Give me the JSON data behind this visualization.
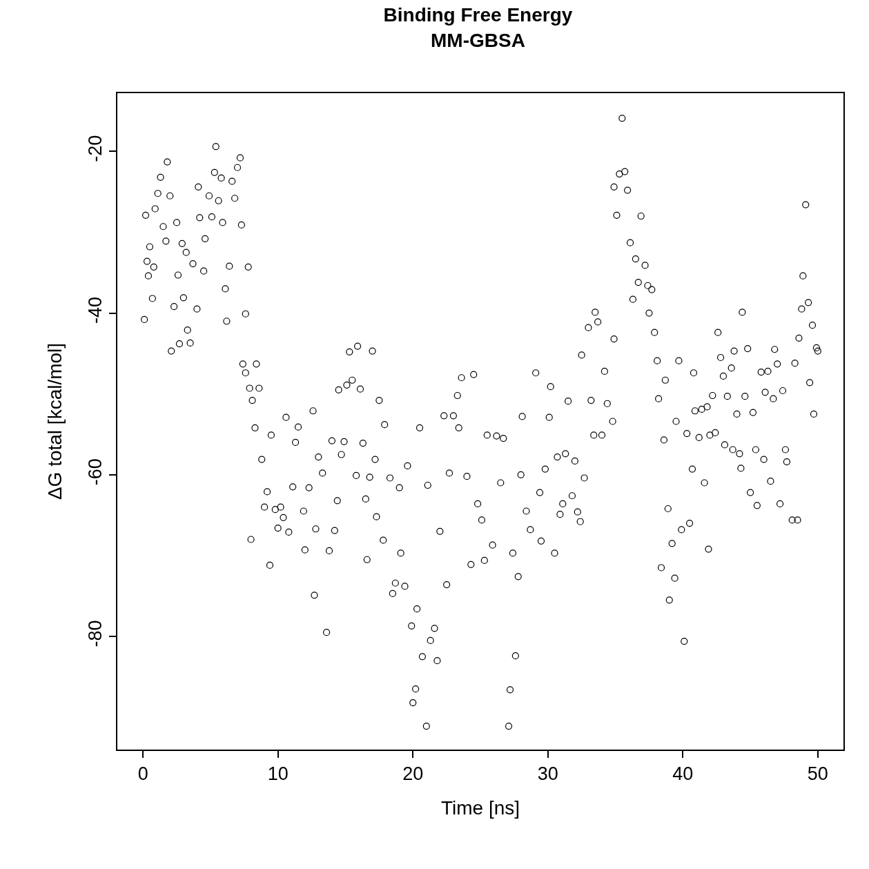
{
  "chart_data": {
    "type": "scatter",
    "title": "Binding Free Energy\nMM-GBSA",
    "xlabel": "Time [ns]",
    "ylabel": "ΔG total [kcal/mol]",
    "xlim": [
      -1.9,
      51.9
    ],
    "ylim": [
      -94.0,
      -12.8
    ],
    "xticks": [
      0,
      10,
      20,
      30,
      40,
      50
    ],
    "yticks": [
      -20,
      -40,
      -60,
      -80
    ],
    "marker": "circle",
    "series": [
      {
        "color": "#000000",
        "x": [
          0.1,
          0.2,
          0.3,
          0.4,
          0.5,
          0.7,
          0.8,
          0.9,
          1.1,
          1.3,
          1.5,
          1.7,
          1.8,
          2.0,
          2.1,
          2.3,
          2.5,
          2.6,
          2.7,
          2.9,
          3.0,
          3.2,
          3.3,
          3.5,
          3.7,
          4.0,
          4.1,
          4.2,
          4.5,
          4.6,
          4.9,
          5.1,
          5.3,
          5.4,
          5.6,
          5.8,
          5.9,
          6.1,
          6.2,
          6.4,
          6.6,
          6.8,
          7.0,
          7.2,
          7.3,
          7.4,
          7.6,
          7.6,
          7.8,
          7.9,
          8.0,
          8.1,
          8.3,
          8.4,
          8.6,
          8.8,
          9.0,
          9.2,
          9.4,
          9.5,
          9.8,
          10.0,
          10.2,
          10.4,
          10.6,
          10.8,
          11.1,
          11.3,
          11.5,
          11.9,
          12.0,
          12.3,
          12.6,
          12.7,
          12.8,
          13.0,
          13.3,
          13.6,
          13.8,
          14.0,
          14.2,
          14.4,
          14.5,
          14.7,
          14.9,
          15.1,
          15.3,
          15.5,
          15.8,
          15.9,
          16.1,
          16.3,
          16.5,
          16.6,
          16.8,
          17.0,
          17.2,
          17.3,
          17.5,
          17.8,
          17.9,
          18.3,
          18.5,
          18.7,
          19.0,
          19.1,
          19.4,
          19.6,
          19.9,
          20.0,
          20.2,
          20.3,
          20.5,
          20.7,
          21.0,
          21.1,
          21.3,
          21.6,
          21.8,
          22.0,
          22.3,
          22.5,
          22.7,
          23.0,
          23.3,
          23.4,
          23.6,
          24.0,
          24.3,
          24.5,
          24.8,
          25.1,
          25.3,
          25.5,
          25.9,
          26.2,
          26.5,
          26.7,
          27.1,
          27.2,
          27.4,
          27.6,
          27.8,
          28.0,
          28.1,
          28.4,
          28.7,
          29.1,
          29.4,
          29.5,
          29.8,
          30.1,
          30.2,
          30.5,
          30.7,
          30.9,
          31.1,
          31.3,
          31.5,
          31.8,
          32.0,
          32.2,
          32.4,
          32.5,
          32.7,
          33.0,
          33.2,
          33.4,
          33.5,
          33.7,
          34.0,
          34.2,
          34.4,
          34.8,
          34.9,
          34.9,
          35.1,
          35.3,
          35.5,
          35.7,
          35.9,
          36.1,
          36.3,
          36.5,
          36.7,
          36.9,
          37.2,
          37.4,
          37.5,
          37.7,
          37.9,
          38.1,
          38.2,
          38.4,
          38.6,
          38.7,
          38.9,
          39.0,
          39.2,
          39.4,
          39.5,
          39.7,
          39.9,
          40.1,
          40.3,
          40.5,
          40.7,
          40.8,
          40.9,
          41.2,
          41.4,
          41.6,
          41.8,
          41.9,
          42.0,
          42.2,
          42.4,
          42.6,
          42.8,
          43.0,
          43.1,
          43.3,
          43.6,
          43.7,
          43.8,
          44.0,
          44.2,
          44.3,
          44.4,
          44.6,
          44.8,
          45.0,
          45.2,
          45.4,
          45.5,
          45.8,
          46.0,
          46.1,
          46.3,
          46.5,
          46.7,
          46.8,
          47.0,
          47.2,
          47.4,
          47.6,
          47.7,
          48.1,
          48.3,
          48.5,
          48.6,
          48.8,
          48.9,
          49.1,
          49.3,
          49.4,
          49.6,
          49.7,
          49.9,
          50.0
        ],
        "values": [
          -40.8,
          -27.9,
          -33.6,
          -35.4,
          -31.8,
          -38.2,
          -34.3,
          -27.1,
          -25.2,
          -23.2,
          -29.3,
          -31.1,
          -21.3,
          -25.5,
          -44.7,
          -39.2,
          -28.8,
          -35.3,
          -43.8,
          -31.4,
          -38.1,
          -32.5,
          -42.1,
          -43.7,
          -33.9,
          -39.5,
          -24.4,
          -28.2,
          -34.8,
          -30.8,
          -25.5,
          -28.1,
          -22.6,
          -19.4,
          -26.1,
          -23.3,
          -28.8,
          -37.0,
          -41.0,
          -34.2,
          -23.7,
          -25.8,
          -22.0,
          -20.8,
          -29.1,
          -46.3,
          -47.4,
          -40.1,
          -34.3,
          -49.3,
          -68.0,
          -50.8,
          -54.2,
          -46.3,
          -49.3,
          -58.1,
          -64.0,
          -62.1,
          -71.2,
          -55.1,
          -64.3,
          -66.6,
          -64.0,
          -65.3,
          -52.9,
          -67.1,
          -61.5,
          -56.0,
          -54.1,
          -64.5,
          -69.3,
          -61.6,
          -52.1,
          -74.9,
          -66.7,
          -57.8,
          -59.8,
          -79.5,
          -69.4,
          -55.8,
          -66.9,
          -63.2,
          -49.5,
          -57.5,
          -55.9,
          -48.9,
          -44.8,
          -48.3,
          -60.1,
          -44.1,
          -49.4,
          -56.1,
          -63.0,
          -70.5,
          -60.3,
          -44.7,
          -58.1,
          -65.2,
          -50.8,
          -68.1,
          -53.8,
          -60.4,
          -74.7,
          -73.4,
          -61.6,
          -69.7,
          -73.8,
          -58.9,
          -78.7,
          -88.2,
          -86.5,
          -76.6,
          -54.2,
          -82.5,
          -91.1,
          -61.3,
          -80.5,
          -79.0,
          -83.0,
          -67.0,
          -52.7,
          -73.6,
          -59.8,
          -52.7,
          -50.2,
          -54.2,
          -48.0,
          -60.2,
          -71.1,
          -47.6,
          -63.6,
          -65.6,
          -70.6,
          -55.1,
          -68.7,
          -55.2,
          -61.0,
          -55.5,
          -91.1,
          -86.6,
          -69.7,
          -82.4,
          -72.6,
          -60.0,
          -52.8,
          -64.5,
          -66.8,
          -47.4,
          -62.2,
          -68.2,
          -59.3,
          -52.9,
          -49.1,
          -69.7,
          -57.8,
          -64.9,
          -63.6,
          -57.4,
          -50.9,
          -62.6,
          -58.3,
          -64.6,
          -65.8,
          -45.2,
          -60.4,
          -41.8,
          -50.8,
          -55.1,
          -39.9,
          -41.1,
          -55.1,
          -47.2,
          -51.2,
          -53.4,
          -43.2,
          -24.4,
          -27.9,
          -22.8,
          -15.9,
          -22.5,
          -24.8,
          -31.3,
          -38.3,
          -33.3,
          -36.2,
          -28.0,
          -34.1,
          -36.6,
          -40.0,
          -37.1,
          -42.4,
          -45.9,
          -50.6,
          -71.5,
          -55.7,
          -48.3,
          -64.2,
          -75.5,
          -68.5,
          -72.8,
          -53.4,
          -45.9,
          -66.8,
          -80.6,
          -54.9,
          -66.0,
          -59.3,
          -47.4,
          -52.1,
          -55.4,
          -51.9,
          -61.0,
          -51.6,
          -69.2,
          -55.1,
          -50.2,
          -54.8,
          -42.4,
          -45.5,
          -47.8,
          -56.3,
          -50.3,
          -46.8,
          -56.9,
          -44.7,
          -52.5,
          -57.4,
          -59.2,
          -39.9,
          -50.3,
          -44.4,
          -62.2,
          -52.3,
          -56.9,
          -63.8,
          -47.3,
          -58.1,
          -49.8,
          -47.2,
          -60.8,
          -50.6,
          -44.5,
          -46.3,
          -63.6,
          -49.6,
          -56.9,
          -58.4,
          -65.6,
          -46.2,
          -65.6,
          -43.1,
          -39.5,
          -35.4,
          -26.6,
          -38.7,
          -48.6,
          -41.5,
          -52.5,
          -44.3,
          -44.7
        ]
      }
    ]
  }
}
